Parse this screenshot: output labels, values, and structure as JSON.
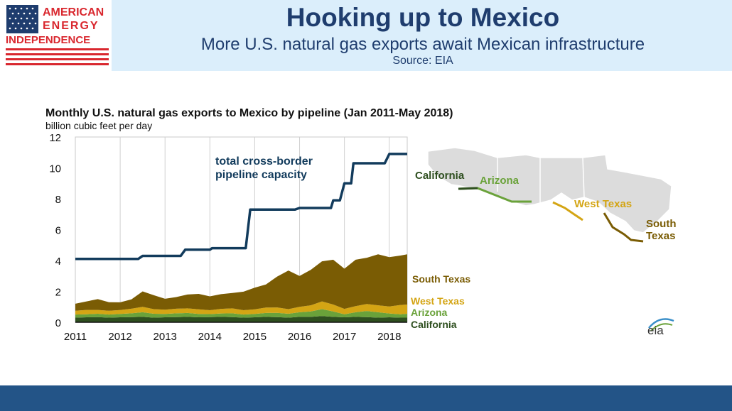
{
  "header": {
    "logo_lines": [
      "AMERICAN",
      "ENERGY",
      "INDEPENDENCE"
    ],
    "title": "Hooking up to Mexico",
    "subtitle": "More U.S. natural gas exports await Mexican infrastructure",
    "source": "Source: EIA"
  },
  "colors": {
    "header_band": "#dbeefb",
    "title_text": "#1f3d6e",
    "footer_band": "#235487",
    "capacity_line": "#123b5c",
    "south_texas": "#7a5c04",
    "west_texas": "#d4a514",
    "arizona": "#6aa23a",
    "california": "#2e4f1f",
    "logo_red": "#d9272e",
    "logo_blue": "#1f3d6e"
  },
  "chart_data": {
    "type": "area",
    "title": "Monthly U.S. natural gas exports to Mexico by pipeline (Jan 2011-May 2018)",
    "ylabel": "billion cubic feet per day",
    "xlabel": "",
    "x_ticks": [
      "2011",
      "2012",
      "2013",
      "2014",
      "2015",
      "2016",
      "2017",
      "2018"
    ],
    "y_ticks": [
      "0",
      "2",
      "4",
      "6",
      "8",
      "10",
      "12"
    ],
    "ylim": [
      0,
      12
    ],
    "xlim": [
      2011.0,
      2018.4
    ],
    "stacked": true,
    "grid": "vertical",
    "x": [
      2011.0,
      2011.25,
      2011.5,
      2011.75,
      2012.0,
      2012.25,
      2012.5,
      2012.75,
      2013.0,
      2013.25,
      2013.5,
      2013.75,
      2014.0,
      2014.25,
      2014.5,
      2014.75,
      2015.0,
      2015.25,
      2015.5,
      2015.75,
      2016.0,
      2016.25,
      2016.5,
      2016.75,
      2017.0,
      2017.25,
      2017.5,
      2017.75,
      2018.0,
      2018.25,
      2018.4
    ],
    "series": [
      {
        "name": "California",
        "values": [
          0.3,
          0.32,
          0.33,
          0.3,
          0.32,
          0.33,
          0.35,
          0.3,
          0.32,
          0.33,
          0.35,
          0.32,
          0.33,
          0.35,
          0.33,
          0.3,
          0.32,
          0.35,
          0.33,
          0.3,
          0.35,
          0.35,
          0.4,
          0.35,
          0.32,
          0.35,
          0.33,
          0.3,
          0.32,
          0.3,
          0.3
        ]
      },
      {
        "name": "Arizona",
        "values": [
          0.2,
          0.2,
          0.22,
          0.2,
          0.22,
          0.25,
          0.3,
          0.25,
          0.22,
          0.25,
          0.25,
          0.22,
          0.2,
          0.22,
          0.25,
          0.2,
          0.22,
          0.25,
          0.28,
          0.25,
          0.3,
          0.35,
          0.45,
          0.35,
          0.2,
          0.3,
          0.4,
          0.35,
          0.25,
          0.22,
          0.25
        ]
      },
      {
        "name": "West Texas",
        "values": [
          0.25,
          0.28,
          0.25,
          0.25,
          0.25,
          0.3,
          0.35,
          0.3,
          0.28,
          0.3,
          0.3,
          0.3,
          0.25,
          0.3,
          0.32,
          0.28,
          0.3,
          0.35,
          0.35,
          0.3,
          0.35,
          0.4,
          0.5,
          0.45,
          0.35,
          0.4,
          0.45,
          0.45,
          0.45,
          0.6,
          0.6
        ]
      },
      {
        "name": "South Texas",
        "values": [
          0.45,
          0.55,
          0.7,
          0.55,
          0.5,
          0.6,
          1.0,
          0.9,
          0.7,
          0.75,
          0.9,
          1.0,
          0.9,
          0.95,
          1.0,
          1.2,
          1.4,
          1.5,
          2.0,
          2.5,
          2.0,
          2.3,
          2.6,
          2.9,
          2.6,
          3.0,
          3.0,
          3.3,
          3.2,
          3.2,
          3.25
        ]
      }
    ],
    "total_capacity": {
      "label_lines": [
        "total cross-border",
        "pipeline capacity"
      ],
      "x": [
        2011.0,
        2012.4,
        2012.5,
        2013.35,
        2013.45,
        2014.0,
        2014.05,
        2014.8,
        2014.9,
        2015.9,
        2016.0,
        2016.7,
        2016.75,
        2016.9,
        2017.0,
        2017.15,
        2017.2,
        2017.9,
        2018.0,
        2018.4
      ],
      "values": [
        4.1,
        4.1,
        4.3,
        4.3,
        4.7,
        4.7,
        4.8,
        4.8,
        7.3,
        7.3,
        7.4,
        7.4,
        7.9,
        7.9,
        9.0,
        9.0,
        10.3,
        10.3,
        10.9,
        10.9
      ]
    },
    "series_labels": [
      "South Texas",
      "West Texas",
      "Arizona",
      "California"
    ]
  },
  "map": {
    "labels": {
      "california": "California",
      "arizona": "Arizona",
      "west_texas": "West Texas",
      "south_texas_lines": [
        "South",
        "Texas"
      ]
    }
  },
  "eia_logo": "eia"
}
